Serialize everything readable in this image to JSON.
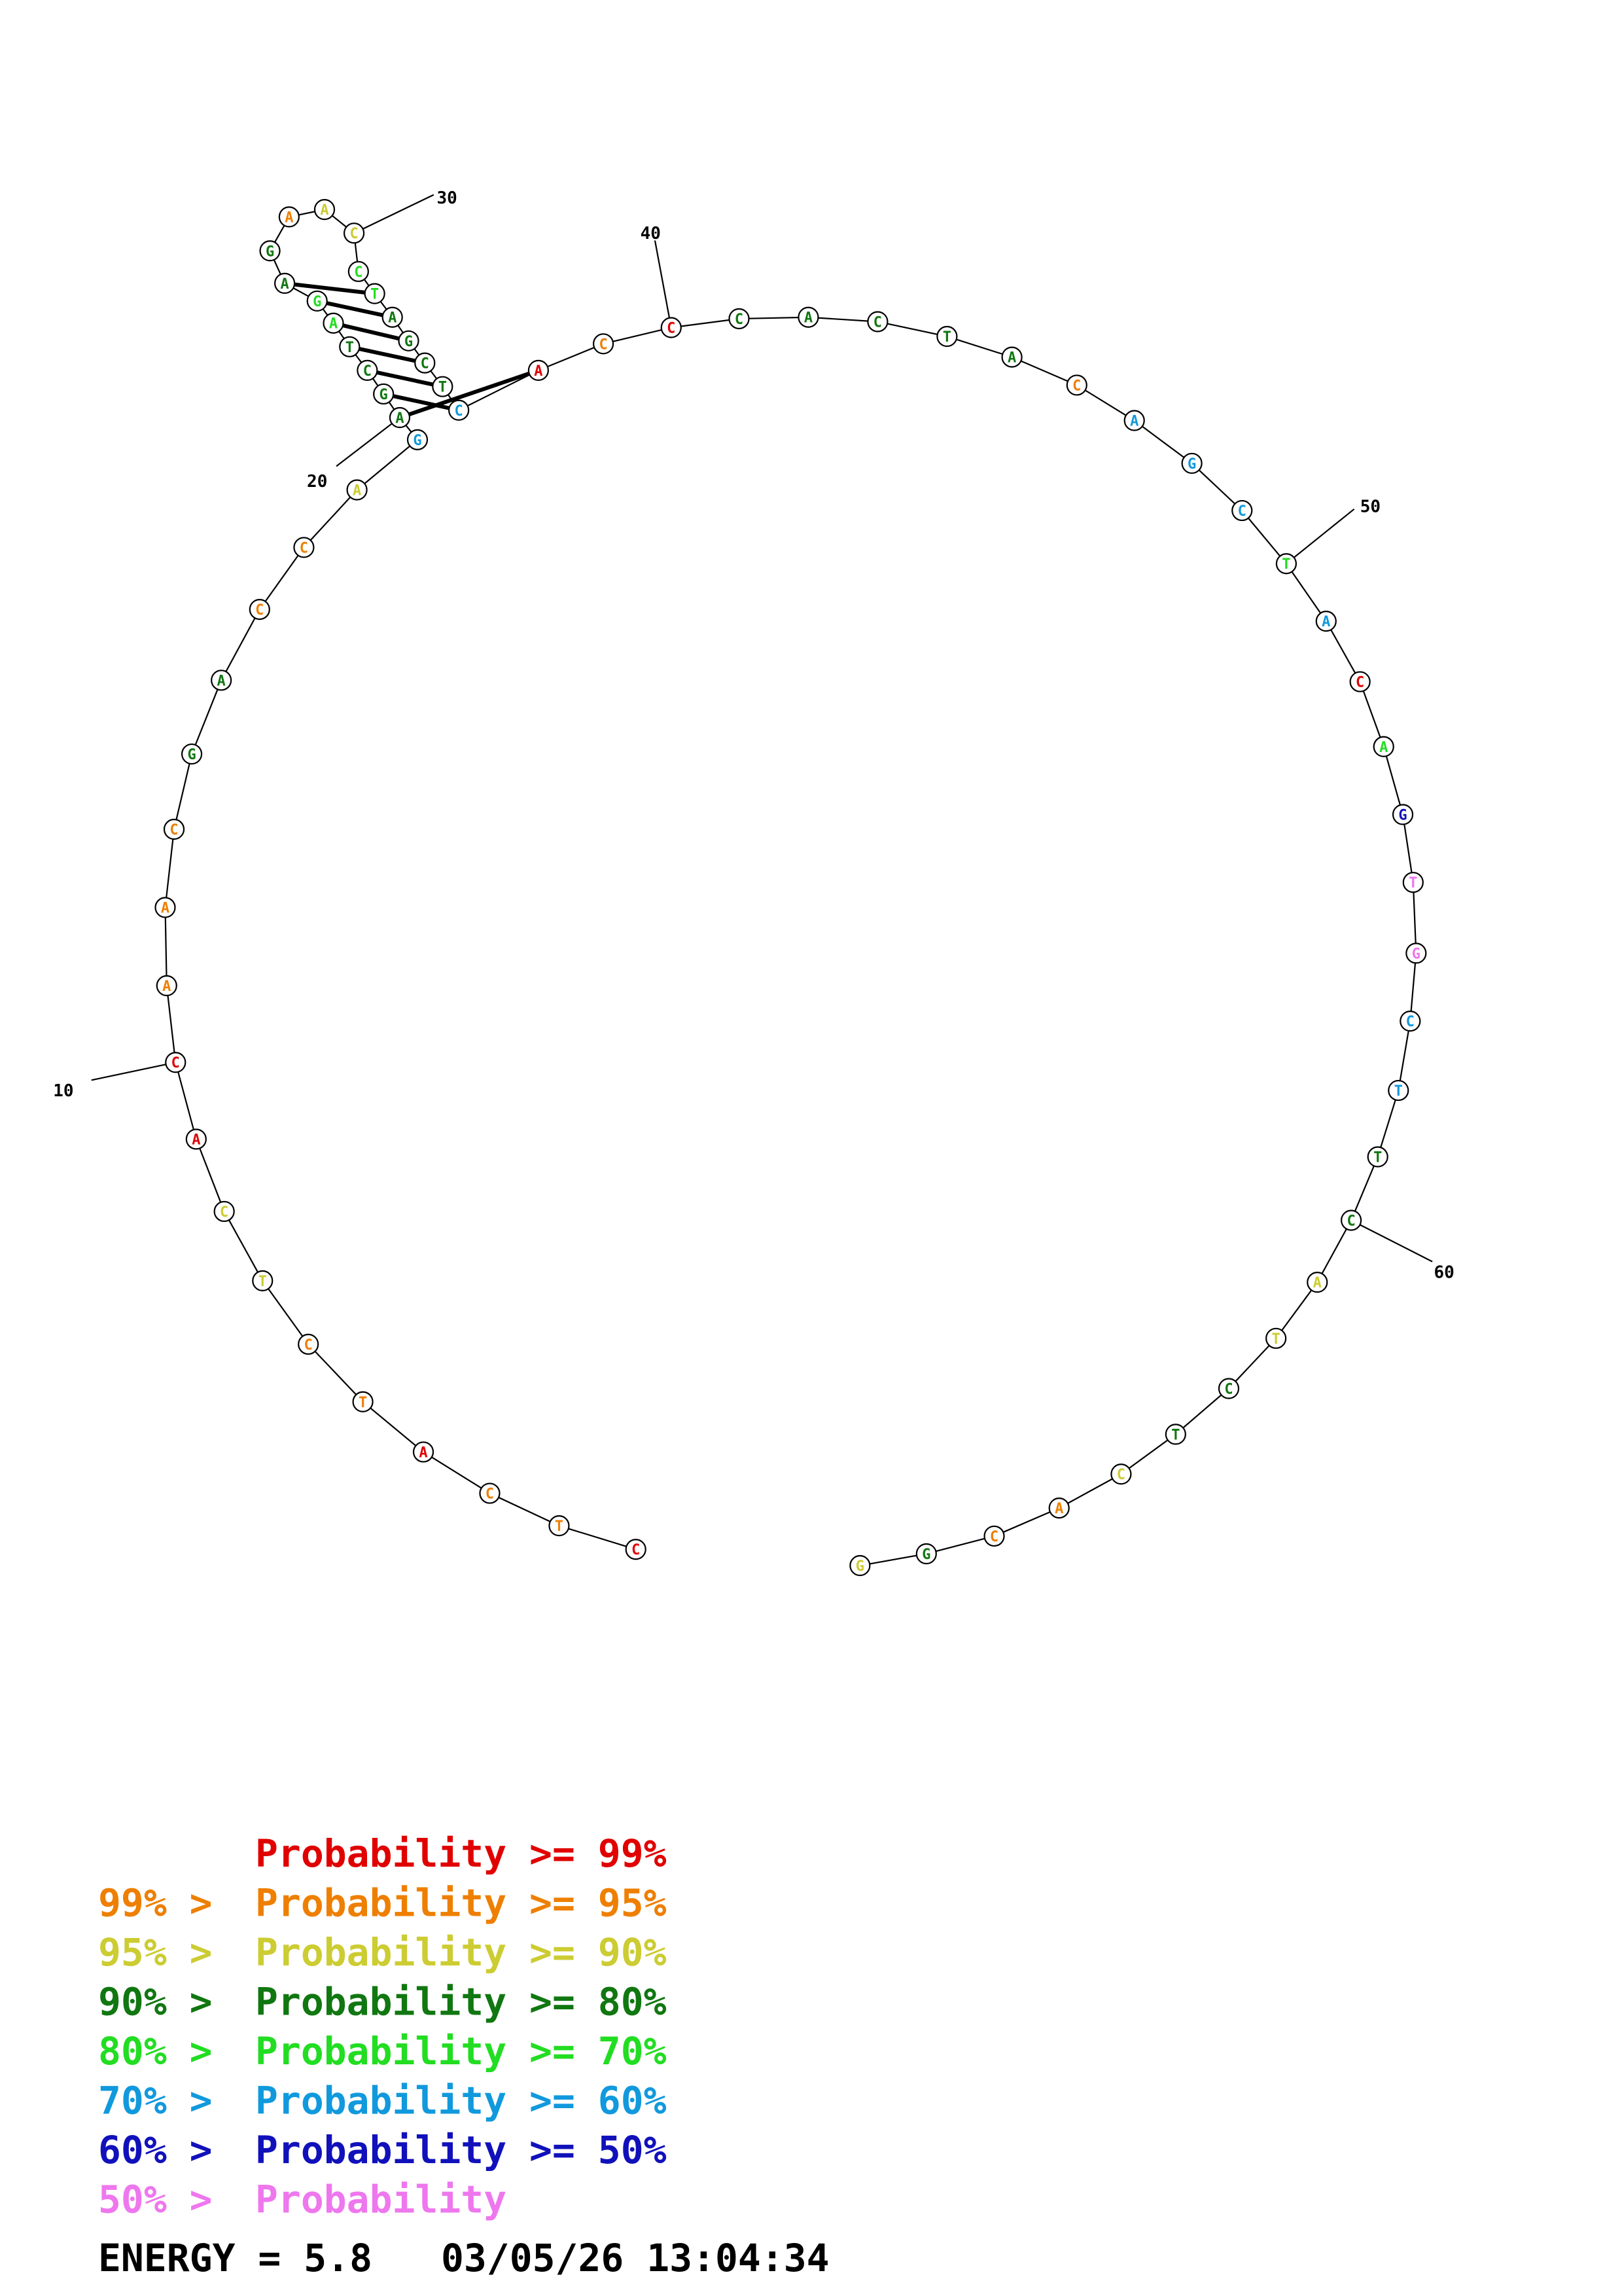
{
  "sequence": [
    {
      "base": "C",
      "color": "#e00000"
    },
    {
      "base": "T",
      "color": "#ee7f00"
    },
    {
      "base": "C",
      "color": "#ee7f00"
    },
    {
      "base": "A",
      "color": "#e00000"
    },
    {
      "base": "T",
      "color": "#ee7f00"
    },
    {
      "base": "C",
      "color": "#ee7f00"
    },
    {
      "base": "T",
      "color": "#cccc33"
    },
    {
      "base": "C",
      "color": "#cccc33"
    },
    {
      "base": "A",
      "color": "#e00000"
    },
    {
      "base": "C",
      "color": "#e00000"
    },
    {
      "base": "A",
      "color": "#ee7f00"
    },
    {
      "base": "A",
      "color": "#ee7f00"
    },
    {
      "base": "C",
      "color": "#ee7f00"
    },
    {
      "base": "G",
      "color": "#117711"
    },
    {
      "base": "A",
      "color": "#117711"
    },
    {
      "base": "C",
      "color": "#ee7f00"
    },
    {
      "base": "C",
      "color": "#ee7f00"
    },
    {
      "base": "A",
      "color": "#cccc33"
    },
    {
      "base": "G",
      "color": "#1199dd"
    },
    {
      "base": "A",
      "color": "#117711"
    },
    {
      "base": "G",
      "color": "#117711"
    },
    {
      "base": "C",
      "color": "#117711"
    },
    {
      "base": "T",
      "color": "#117711"
    },
    {
      "base": "A",
      "color": "#22dd22"
    },
    {
      "base": "G",
      "color": "#22dd22"
    },
    {
      "base": "A",
      "color": "#117711"
    },
    {
      "base": "G",
      "color": "#117711"
    },
    {
      "base": "A",
      "color": "#ee7f00"
    },
    {
      "base": "A",
      "color": "#cccc33"
    },
    {
      "base": "C",
      "color": "#cccc33"
    },
    {
      "base": "C",
      "color": "#22dd22"
    },
    {
      "base": "T",
      "color": "#22dd22"
    },
    {
      "base": "A",
      "color": "#117711"
    },
    {
      "base": "G",
      "color": "#117711"
    },
    {
      "base": "C",
      "color": "#117711"
    },
    {
      "base": "T",
      "color": "#117711"
    },
    {
      "base": "C",
      "color": "#1199dd"
    },
    {
      "base": "A",
      "color": "#e00000"
    },
    {
      "base": "C",
      "color": "#ee7f00"
    },
    {
      "base": "C",
      "color": "#e00000"
    },
    {
      "base": "C",
      "color": "#117711"
    },
    {
      "base": "A",
      "color": "#117711"
    },
    {
      "base": "C",
      "color": "#117711"
    },
    {
      "base": "T",
      "color": "#117711"
    },
    {
      "base": "A",
      "color": "#117711"
    },
    {
      "base": "C",
      "color": "#ee7f00"
    },
    {
      "base": "A",
      "color": "#1199dd"
    },
    {
      "base": "G",
      "color": "#1199dd"
    },
    {
      "base": "C",
      "color": "#1199dd"
    },
    {
      "base": "T",
      "color": "#22dd22"
    },
    {
      "base": "A",
      "color": "#1199dd"
    },
    {
      "base": "C",
      "color": "#e00000"
    },
    {
      "base": "A",
      "color": "#22dd22"
    },
    {
      "base": "G",
      "color": "#1111bb"
    },
    {
      "base": "T",
      "color": "#ee77ee"
    },
    {
      "base": "G",
      "color": "#ee77ee"
    },
    {
      "base": "C",
      "color": "#1199dd"
    },
    {
      "base": "T",
      "color": "#1199dd"
    },
    {
      "base": "T",
      "color": "#117711"
    },
    {
      "base": "C",
      "color": "#117711"
    },
    {
      "base": "A",
      "color": "#cccc33"
    },
    {
      "base": "T",
      "color": "#cccc33"
    },
    {
      "base": "C",
      "color": "#117711"
    },
    {
      "base": "T",
      "color": "#117711"
    },
    {
      "base": "C",
      "color": "#cccc33"
    },
    {
      "base": "A",
      "color": "#ee7f00"
    },
    {
      "base": "C",
      "color": "#ee7f00"
    },
    {
      "base": "G",
      "color": "#117711"
    },
    {
      "base": "G",
      "color": "#cccc33"
    }
  ],
  "pairs": [
    [
      19,
      37
    ],
    [
      20,
      36
    ],
    [
      21,
      35
    ],
    [
      22,
      34
    ],
    [
      23,
      33
    ],
    [
      24,
      32
    ],
    [
      25,
      31
    ]
  ],
  "position_labels": [
    {
      "index": 10,
      "text": "10"
    },
    {
      "index": 20,
      "text": "20"
    },
    {
      "index": 30,
      "text": "30"
    },
    {
      "index": 40,
      "text": "40"
    },
    {
      "index": 50,
      "text": "50"
    },
    {
      "index": 60,
      "text": "60"
    }
  ],
  "legend": [
    {
      "prefix": "",
      "label": "Probability >= 99%",
      "color": "#e00000"
    },
    {
      "prefix": "99% >",
      "label": "Probability >= 95%",
      "color": "#ee7f00"
    },
    {
      "prefix": "95% >",
      "label": "Probability >= 90%",
      "color": "#cccc33"
    },
    {
      "prefix": "90% >",
      "label": "Probability >= 80%",
      "color": "#117711"
    },
    {
      "prefix": "80% >",
      "label": "Probability >= 70%",
      "color": "#22dd22"
    },
    {
      "prefix": "70% >",
      "label": "Probability >= 60%",
      "color": "#1199dd"
    },
    {
      "prefix": "60% >",
      "label": "Probability >= 50%",
      "color": "#1111bb"
    },
    {
      "prefix": "50% >",
      "label": "Probability",
      "color": "#ee77ee"
    }
  ],
  "footer": {
    "energy": "ENERGY = 5.8",
    "timestamp": "03/05/26 13:04:34"
  }
}
